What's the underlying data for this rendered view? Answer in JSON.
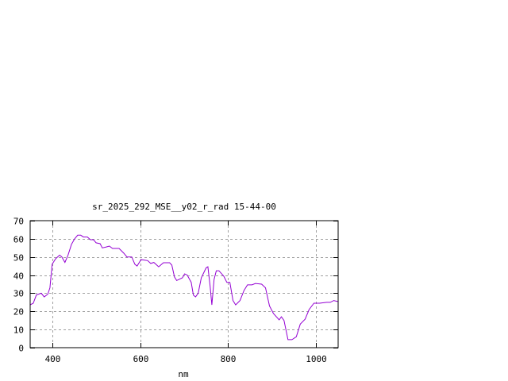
{
  "chart_data": {
    "type": "line",
    "title": "sr_2025_292_MSE__y02_r_rad 15-44-00",
    "xlabel": "nm",
    "ylabel": "",
    "xlim": [
      350,
      1050
    ],
    "ylim": [
      0,
      70
    ],
    "xticks": [
      400,
      600,
      800,
      1000
    ],
    "yticks": [
      0,
      10,
      20,
      30,
      40,
      50,
      60,
      70
    ],
    "grid": true,
    "legend": "none",
    "series": [
      {
        "color": "#9400d3",
        "x": [
          350,
          357,
          364,
          375,
          382,
          390,
          395,
          400,
          408,
          417,
          422,
          429,
          436,
          444,
          451,
          458,
          465,
          471,
          480,
          487,
          494,
          500,
          509,
          514,
          523,
          530,
          537,
          552,
          563,
          570,
          581,
          588,
          593,
          602,
          617,
          624,
          631,
          642,
          653,
          667,
          672,
          678,
          683,
          696,
          701,
          707,
          716,
          721,
          726,
          732,
          739,
          750,
          754,
          759,
          763,
          768,
          773,
          779,
          790,
          797,
          804,
          811,
          817,
          827,
          836,
          844,
          854,
          862,
          876,
          885,
          894,
          903,
          916,
          921,
          927,
          936,
          945,
          955,
          964,
          975,
          984,
          995,
          1008,
          1024,
          1032,
          1040,
          1049
        ],
        "y": [
          23.6,
          24.5,
          29,
          30,
          28,
          29.5,
          33,
          46,
          49,
          51,
          50,
          47,
          51,
          57,
          60,
          62,
          62,
          61,
          61,
          59.5,
          59.5,
          57.8,
          57.3,
          55,
          55.5,
          56,
          54.7,
          54.7,
          52,
          50,
          50,
          46,
          45,
          48.5,
          48,
          46.4,
          47,
          44.6,
          46.8,
          46.8,
          45.5,
          39,
          37,
          38.5,
          40.7,
          40,
          36,
          29,
          28,
          30,
          38.5,
          44,
          44.6,
          34,
          23.6,
          37.6,
          42.4,
          42.4,
          39.4,
          36,
          36,
          26,
          23.6,
          26,
          31.5,
          34.6,
          34.6,
          35.4,
          35,
          33,
          23,
          18.8,
          15.3,
          17,
          15,
          4.4,
          4.4,
          6,
          13,
          15.7,
          21,
          24.5,
          24.5,
          25,
          25,
          26,
          25.4
        ]
      }
    ]
  }
}
